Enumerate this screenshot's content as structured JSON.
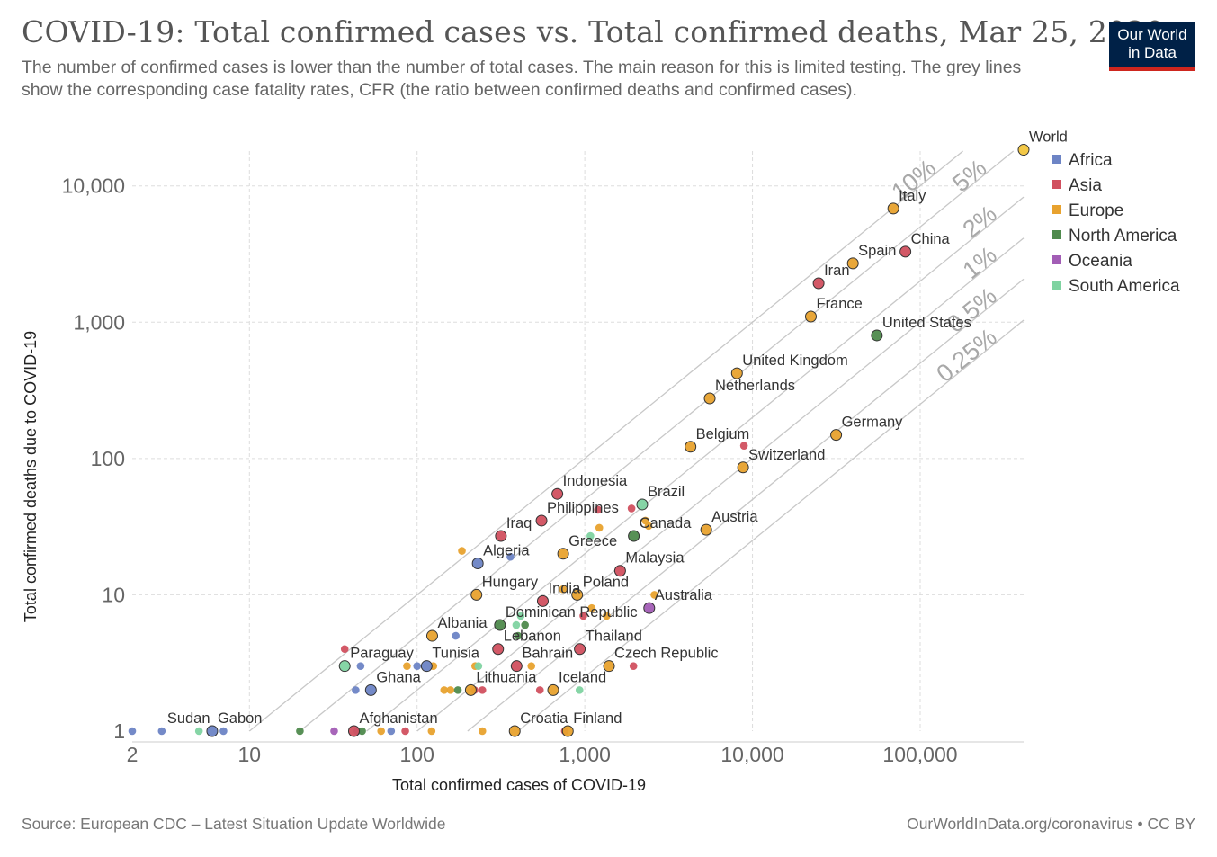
{
  "title": "COVID-19: Total confirmed cases vs. Total confirmed deaths, Mar 25, 2020",
  "subtitle": "The number of confirmed cases is lower than the number of total cases. The main reason for this is limited testing.  The grey lines show the corresponding case fatality rates, CFR (the ratio between confirmed deaths and confirmed cases).",
  "logo": {
    "line1": "Our World",
    "line2": "in Data"
  },
  "footer": {
    "source": "Source: European CDC – Latest Situation Update Worldwide",
    "credit": "OurWorldInData.org/coronavirus • CC BY"
  },
  "colors": {
    "Africa": "#6d84c5",
    "Asia": "#d1505f",
    "Europe": "#e8a22e",
    "North America": "#4f8a4d",
    "Oceania": "#a25db5",
    "South America": "#7fd3a1"
  },
  "chart_data": {
    "type": "scatter",
    "xlabel": "Total confirmed cases of COVID-19",
    "ylabel": "Total confirmed deaths due to COVID-19",
    "x_scale": "log",
    "y_scale": "log",
    "xlim": [
      2,
      414000
    ],
    "ylim": [
      1,
      18000
    ],
    "x_ticks": [
      2,
      10,
      100,
      1000,
      10000,
      100000
    ],
    "x_tick_labels": [
      "2",
      "10",
      "100",
      "1,000",
      "10,000",
      "100,000"
    ],
    "y_ticks": [
      1,
      10,
      100,
      1000,
      10000
    ],
    "y_tick_labels": [
      "1",
      "10",
      "100",
      "1,000",
      "10,000"
    ],
    "grid": true,
    "legend_position": "top-right",
    "legend": [
      "Africa",
      "Asia",
      "Europe",
      "North America",
      "Oceania",
      "South America"
    ],
    "cfr_lines": [
      {
        "label": "10%",
        "ratio": 0.1
      },
      {
        "label": "5%",
        "ratio": 0.05
      },
      {
        "label": "2%",
        "ratio": 0.02
      },
      {
        "label": "1%",
        "ratio": 0.01
      },
      {
        "label": "0.5%",
        "ratio": 0.005
      },
      {
        "label": "0.25%",
        "ratio": 0.0025
      }
    ],
    "points": [
      {
        "name": "World",
        "region": "",
        "x": 414000,
        "y": 18400,
        "label": true,
        "big": true
      },
      {
        "name": "Italy",
        "region": "Europe",
        "x": 69200,
        "y": 6820,
        "label": true,
        "big": true
      },
      {
        "name": "China",
        "region": "Asia",
        "x": 81700,
        "y": 3290,
        "label": true,
        "big": true
      },
      {
        "name": "Spain",
        "region": "Europe",
        "x": 39700,
        "y": 2700,
        "label": true,
        "big": true
      },
      {
        "name": "Iran",
        "region": "Asia",
        "x": 24800,
        "y": 1930,
        "label": true,
        "big": true
      },
      {
        "name": "France",
        "region": "Europe",
        "x": 22300,
        "y": 1100,
        "label": true,
        "big": true
      },
      {
        "name": "United States",
        "region": "North America",
        "x": 55200,
        "y": 800,
        "label": true,
        "big": true
      },
      {
        "name": "United Kingdom",
        "region": "Europe",
        "x": 8080,
        "y": 422,
        "label": true,
        "big": true
      },
      {
        "name": "Netherlands",
        "region": "Europe",
        "x": 5560,
        "y": 276,
        "label": true,
        "big": true
      },
      {
        "name": "Belgium",
        "region": "Europe",
        "x": 4270,
        "y": 122,
        "label": true,
        "big": true
      },
      {
        "name": "Germany",
        "region": "Europe",
        "x": 31550,
        "y": 149,
        "label": true,
        "big": true
      },
      {
        "name": "Switzerland",
        "region": "Europe",
        "x": 8790,
        "y": 86,
        "label": true,
        "big": true
      },
      {
        "name": "Indonesia",
        "region": "Asia",
        "x": 686,
        "y": 55,
        "label": true,
        "big": true
      },
      {
        "name": "Brazil",
        "region": "South America",
        "x": 2200,
        "y": 46,
        "label": true,
        "big": true
      },
      {
        "name": "Philippines",
        "region": "Asia",
        "x": 552,
        "y": 35,
        "label": true,
        "big": true
      },
      {
        "name": "Iraq",
        "region": "Asia",
        "x": 316,
        "y": 27,
        "label": true,
        "big": true
      },
      {
        "name": "Canada",
        "region": "North America",
        "x": 1960,
        "y": 27,
        "label": true,
        "big": true
      },
      {
        "name": "Austria",
        "region": "Europe",
        "x": 5300,
        "y": 30,
        "label": true,
        "big": true
      },
      {
        "name": "Algeria",
        "region": "Africa",
        "x": 230,
        "y": 17,
        "label": true,
        "big": true
      },
      {
        "name": "Greece",
        "region": "Europe",
        "x": 743,
        "y": 20,
        "label": true,
        "big": true
      },
      {
        "name": "Malaysia",
        "region": "Asia",
        "x": 1624,
        "y": 15,
        "label": true,
        "big": true
      },
      {
        "name": "Hungary",
        "region": "Europe",
        "x": 226,
        "y": 10,
        "label": true,
        "big": true
      },
      {
        "name": "India",
        "region": "Asia",
        "x": 562,
        "y": 9,
        "label": true,
        "big": true
      },
      {
        "name": "Poland",
        "region": "Europe",
        "x": 901,
        "y": 10,
        "label": true,
        "big": true
      },
      {
        "name": "Dominican Republic",
        "region": "North America",
        "x": 312,
        "y": 6,
        "label": true,
        "big": true
      },
      {
        "name": "Australia",
        "region": "Oceania",
        "x": 2423,
        "y": 8,
        "label": true,
        "big": true
      },
      {
        "name": "Albania",
        "region": "Europe",
        "x": 123,
        "y": 5,
        "label": true,
        "big": true
      },
      {
        "name": "Lebanon",
        "region": "Asia",
        "x": 304,
        "y": 4,
        "label": true,
        "big": true
      },
      {
        "name": "Thailand",
        "region": "Asia",
        "x": 934,
        "y": 4,
        "label": true,
        "big": true
      },
      {
        "name": "Paraguay",
        "region": "South America",
        "x": 37,
        "y": 3,
        "label": true,
        "big": true
      },
      {
        "name": "Tunisia",
        "region": "Africa",
        "x": 114,
        "y": 3,
        "label": true,
        "big": true
      },
      {
        "name": "Bahrain",
        "region": "Asia",
        "x": 392,
        "y": 3,
        "label": true,
        "big": true
      },
      {
        "name": "Czech Republic",
        "region": "Europe",
        "x": 1394,
        "y": 3,
        "label": true,
        "big": true
      },
      {
        "name": "Ghana",
        "region": "Africa",
        "x": 53,
        "y": 2,
        "label": true,
        "big": true
      },
      {
        "name": "Lithuania",
        "region": "Europe",
        "x": 209,
        "y": 2,
        "label": true,
        "big": true
      },
      {
        "name": "Iceland",
        "region": "Europe",
        "x": 648,
        "y": 2,
        "label": true,
        "big": true
      },
      {
        "name": "Sudan",
        "region": "Africa",
        "x": 3,
        "y": 1,
        "label": true,
        "big": false
      },
      {
        "name": "Gabon",
        "region": "Africa",
        "x": 6,
        "y": 1,
        "label": true,
        "big": true
      },
      {
        "name": "Afghanistan",
        "region": "Asia",
        "x": 42,
        "y": 1,
        "label": true,
        "big": true
      },
      {
        "name": "Croatia",
        "region": "Europe",
        "x": 382,
        "y": 1,
        "label": true,
        "big": true
      },
      {
        "name": "Finland",
        "region": "Europe",
        "x": 792,
        "y": 1,
        "label": true,
        "big": true
      },
      {
        "name": "",
        "region": "Africa",
        "x": 2,
        "y": 1
      },
      {
        "name": "",
        "region": "South America",
        "x": 5,
        "y": 1
      },
      {
        "name": "",
        "region": "Africa",
        "x": 7,
        "y": 1
      },
      {
        "name": "",
        "region": "North America",
        "x": 20,
        "y": 1
      },
      {
        "name": "",
        "region": "Oceania",
        "x": 32,
        "y": 1
      },
      {
        "name": "",
        "region": "Africa",
        "x": 44,
        "y": 1
      },
      {
        "name": "",
        "region": "North America",
        "x": 47,
        "y": 1
      },
      {
        "name": "",
        "region": "Europe",
        "x": 61,
        "y": 1
      },
      {
        "name": "",
        "region": "Africa",
        "x": 70,
        "y": 1
      },
      {
        "name": "",
        "region": "Asia",
        "x": 85,
        "y": 1
      },
      {
        "name": "",
        "region": "Europe",
        "x": 122,
        "y": 1
      },
      {
        "name": "",
        "region": "Europe",
        "x": 245,
        "y": 1
      },
      {
        "name": "",
        "region": "Asia",
        "x": 760,
        "y": 1
      },
      {
        "name": "",
        "region": "Africa",
        "x": 43,
        "y": 2
      },
      {
        "name": "",
        "region": "Europe",
        "x": 145,
        "y": 2
      },
      {
        "name": "",
        "region": "Europe",
        "x": 158,
        "y": 2
      },
      {
        "name": "",
        "region": "North America",
        "x": 175,
        "y": 2
      },
      {
        "name": "",
        "region": "Asia",
        "x": 220,
        "y": 2
      },
      {
        "name": "",
        "region": "Asia",
        "x": 245,
        "y": 2
      },
      {
        "name": "",
        "region": "Asia",
        "x": 540,
        "y": 2
      },
      {
        "name": "",
        "region": "South America",
        "x": 930,
        "y": 2
      },
      {
        "name": "",
        "region": "Africa",
        "x": 46,
        "y": 3
      },
      {
        "name": "",
        "region": "Europe",
        "x": 87,
        "y": 3
      },
      {
        "name": "",
        "region": "Africa",
        "x": 100,
        "y": 3
      },
      {
        "name": "",
        "region": "Europe",
        "x": 125,
        "y": 3
      },
      {
        "name": "",
        "region": "Europe",
        "x": 222,
        "y": 3
      },
      {
        "name": "",
        "region": "South America",
        "x": 232,
        "y": 3
      },
      {
        "name": "",
        "region": "Europe",
        "x": 480,
        "y": 3
      },
      {
        "name": "",
        "region": "Asia",
        "x": 1950,
        "y": 3
      },
      {
        "name": "",
        "region": "Asia",
        "x": 37,
        "y": 4
      },
      {
        "name": "",
        "region": "North America",
        "x": 400,
        "y": 5
      },
      {
        "name": "",
        "region": "Africa",
        "x": 170,
        "y": 5
      },
      {
        "name": "",
        "region": "South America",
        "x": 390,
        "y": 6
      },
      {
        "name": "",
        "region": "North America",
        "x": 440,
        "y": 6
      },
      {
        "name": "",
        "region": "South America",
        "x": 415,
        "y": 7
      },
      {
        "name": "",
        "region": "Asia",
        "x": 980,
        "y": 7
      },
      {
        "name": "",
        "region": "Europe",
        "x": 1350,
        "y": 7
      },
      {
        "name": "",
        "region": "Europe",
        "x": 1100,
        "y": 8
      },
      {
        "name": "",
        "region": "Europe",
        "x": 740,
        "y": 11
      },
      {
        "name": "",
        "region": "Europe",
        "x": 2600,
        "y": 10
      },
      {
        "name": "",
        "region": "Europe",
        "x": 185,
        "y": 21
      },
      {
        "name": "",
        "region": "Africa",
        "x": 360,
        "y": 19
      },
      {
        "name": "",
        "region": "South America",
        "x": 1080,
        "y": 27
      },
      {
        "name": "",
        "region": "Europe",
        "x": 1220,
        "y": 31
      },
      {
        "name": "",
        "region": "Europe",
        "x": 2300,
        "y": 35
      },
      {
        "name": "",
        "region": "Europe",
        "x": 2400,
        "y": 32
      },
      {
        "name": "",
        "region": "Asia",
        "x": 1200,
        "y": 42
      },
      {
        "name": "",
        "region": "Asia",
        "x": 1900,
        "y": 43
      },
      {
        "name": "",
        "region": "Asia",
        "x": 8900,
        "y": 124
      }
    ]
  }
}
